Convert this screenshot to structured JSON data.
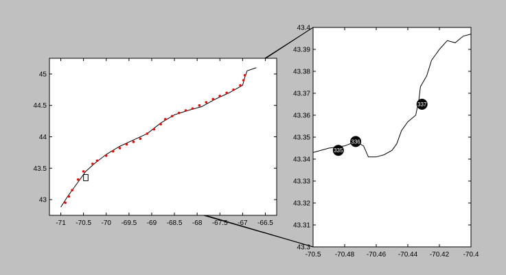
{
  "chart_data": [
    {
      "type": "scatter",
      "title": "",
      "xlabel": "",
      "ylabel": "",
      "xlim": [
        -71.25,
        -66.25
      ],
      "ylim": [
        42.75,
        45.25
      ],
      "xticks": [
        -71,
        -70.5,
        -70,
        -69.5,
        -69,
        -68.5,
        -68,
        -67.5,
        -67,
        -66.5
      ],
      "xtick_labels": [
        "-71",
        "-70.5",
        "-70",
        "-69.5",
        "-69",
        "-68.5",
        "-68",
        "-67.5",
        "-67",
        "-66.5"
      ],
      "yticks": [
        43,
        43.5,
        44,
        44.5,
        45
      ],
      "ytick_labels": [
        "43",
        "43.5",
        "44",
        "44.5",
        "45"
      ],
      "grid": false,
      "coastline": [
        [
          -71.0,
          42.88
        ],
        [
          -70.85,
          43.05
        ],
        [
          -70.72,
          43.18
        ],
        [
          -70.6,
          43.3
        ],
        [
          -70.45,
          43.45
        ],
        [
          -70.25,
          43.58
        ],
        [
          -70.0,
          43.72
        ],
        [
          -69.7,
          43.85
        ],
        [
          -69.4,
          43.95
        ],
        [
          -69.1,
          44.05
        ],
        [
          -68.8,
          44.22
        ],
        [
          -68.5,
          44.35
        ],
        [
          -68.2,
          44.42
        ],
        [
          -67.9,
          44.48
        ],
        [
          -67.6,
          44.6
        ],
        [
          -67.3,
          44.7
        ],
        [
          -67.0,
          44.82
        ],
        [
          -66.95,
          44.95
        ],
        [
          -66.9,
          45.05
        ],
        [
          -66.7,
          45.1
        ]
      ],
      "coastline_color": "#000000",
      "series": [
        {
          "color": "#ff0000",
          "points": [
            [
              -70.9,
              42.95
            ],
            [
              -70.82,
              43.05
            ],
            [
              -70.75,
              43.15
            ],
            [
              -70.62,
              43.32
            ],
            [
              -70.5,
              43.45
            ],
            [
              -70.3,
              43.57
            ],
            [
              -70.2,
              43.62
            ],
            [
              -70.0,
              43.7
            ],
            [
              -69.85,
              43.77
            ],
            [
              -69.7,
              43.82
            ],
            [
              -69.55,
              43.88
            ],
            [
              -69.4,
              43.92
            ],
            [
              -69.25,
              43.97
            ],
            [
              -69.1,
              44.05
            ],
            [
              -68.95,
              44.12
            ],
            [
              -68.8,
              44.2
            ],
            [
              -68.7,
              44.28
            ],
            [
              -68.55,
              44.33
            ],
            [
              -68.4,
              44.38
            ],
            [
              -68.25,
              44.42
            ],
            [
              -68.1,
              44.45
            ],
            [
              -67.95,
              44.5
            ],
            [
              -67.8,
              44.55
            ],
            [
              -67.65,
              44.6
            ],
            [
              -67.5,
              44.65
            ],
            [
              -67.35,
              44.7
            ],
            [
              -67.2,
              44.75
            ],
            [
              -67.05,
              44.82
            ],
            [
              -66.98,
              44.9
            ],
            [
              -66.95,
              44.98
            ]
          ]
        }
      ],
      "zoom_box": {
        "xlim": [
          -70.5,
          -70.4
        ],
        "ylim": [
          43.3,
          43.4
        ]
      }
    },
    {
      "type": "line",
      "title": "",
      "xlabel": "",
      "ylabel": "",
      "xlim": [
        -70.5,
        -70.4
      ],
      "ylim": [
        43.3,
        43.4
      ],
      "xticks": [
        -70.5,
        -70.48,
        -70.46,
        -70.44,
        -70.42,
        -70.4
      ],
      "xtick_labels": [
        "-70.5",
        "-70.48",
        "-70.46",
        "-70.44",
        "-70.42",
        "-70.4"
      ],
      "yticks": [
        43.3,
        43.31,
        43.32,
        43.33,
        43.34,
        43.35,
        43.36,
        43.37,
        43.38,
        43.39,
        43.4
      ],
      "ytick_labels": [
        "43.3",
        "43.31",
        "43.32",
        "43.33",
        "43.34",
        "43.35",
        "43.36",
        "43.37",
        "43.38",
        "43.39",
        "43.4"
      ],
      "grid": false,
      "coastline": [
        [
          -70.5,
          43.343
        ],
        [
          -70.49,
          43.345
        ],
        [
          -70.48,
          43.346
        ],
        [
          -70.473,
          43.348
        ],
        [
          -70.468,
          43.346
        ],
        [
          -70.465,
          43.341
        ],
        [
          -70.46,
          43.341
        ],
        [
          -70.455,
          43.342
        ],
        [
          -70.45,
          43.344
        ],
        [
          -70.447,
          43.347
        ],
        [
          -70.444,
          43.353
        ],
        [
          -70.44,
          43.357
        ],
        [
          -70.435,
          43.36
        ],
        [
          -70.433,
          43.367
        ],
        [
          -70.432,
          43.373
        ],
        [
          -70.428,
          43.378
        ],
        [
          -70.425,
          43.385
        ],
        [
          -70.42,
          43.39
        ],
        [
          -70.415,
          43.394
        ],
        [
          -70.41,
          43.393
        ],
        [
          -70.405,
          43.396
        ],
        [
          -70.4,
          43.397
        ]
      ],
      "coastline_color": "#000000",
      "markers": [
        {
          "label": "335",
          "x": -70.484,
          "y": 43.344
        },
        {
          "label": "336",
          "x": -70.473,
          "y": 43.348
        },
        {
          "label": "337",
          "x": -70.431,
          "y": 43.365
        }
      ],
      "marker_color": "#000000",
      "marker_text_color": "#ffffff"
    }
  ]
}
